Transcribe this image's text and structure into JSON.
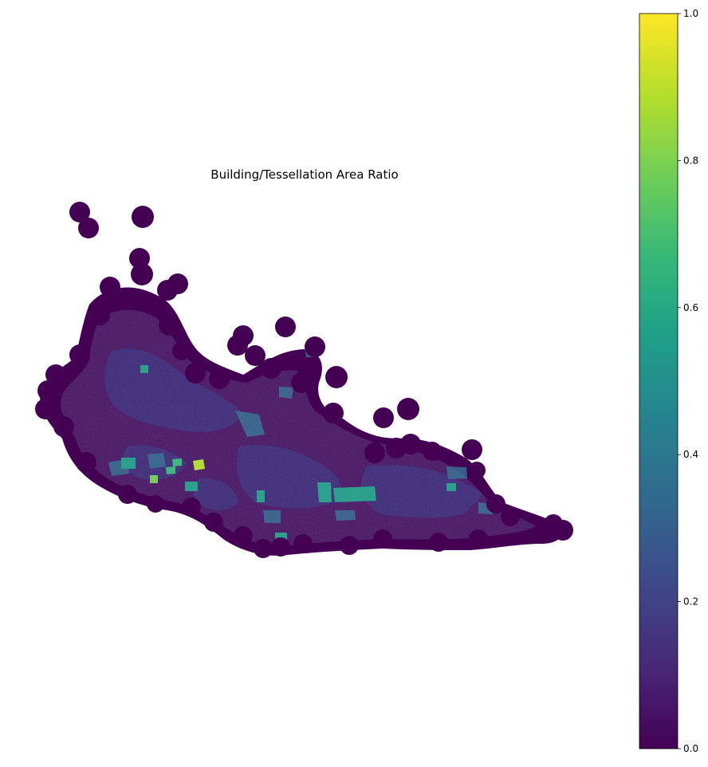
{
  "map": {
    "title": "Building/Tessellation Area Ratio",
    "colormap": "viridis",
    "colormap_stops": [
      "#440154",
      "#482878",
      "#3e4989",
      "#31688e",
      "#26828e",
      "#1f9e89",
      "#35b779",
      "#6ece58",
      "#b5de2b",
      "#fde725"
    ],
    "axes_visible": false,
    "colorbar": {
      "orientation": "vertical",
      "position": "right",
      "range": [
        0.0,
        1.0
      ],
      "ticks": [
        {
          "value": 0.0,
          "label": "0.0"
        },
        {
          "value": 0.2,
          "label": "0.2"
        },
        {
          "value": 0.4,
          "label": "0.4"
        },
        {
          "value": 0.6,
          "label": "0.6"
        },
        {
          "value": 0.8,
          "label": "0.8"
        },
        {
          "value": 1.0,
          "label": "1.0"
        }
      ]
    }
  }
}
